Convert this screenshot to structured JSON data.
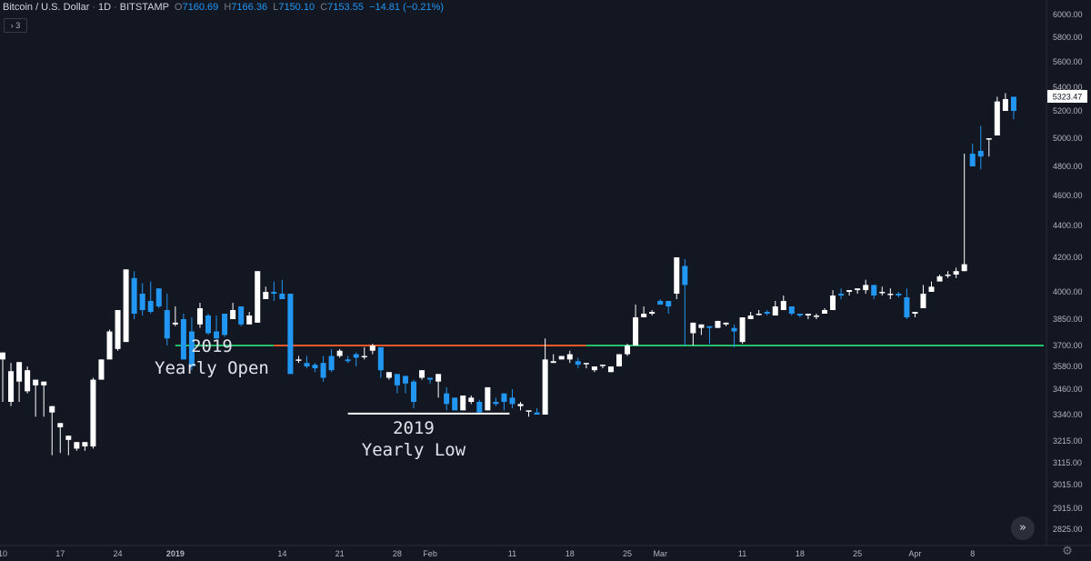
{
  "header": {
    "symbol": "Bitcoin / U.S. Dollar",
    "interval": "1D",
    "exchange": "BITSTAMP",
    "o_label": "O",
    "o_value": "7160.69",
    "h_label": "H",
    "h_value": "7166.36",
    "l_label": "L",
    "l_value": "7150.10",
    "c_label": "C",
    "c_value": "7153.55",
    "change": "−14.81 (−0.21%)"
  },
  "indicators_button": "› 3",
  "scroll_button_icon": "double-chevron-right-icon",
  "settings_icon": "gear-icon",
  "colors": {
    "up": "#ffffff",
    "down": "#2196f3",
    "background": "#131722",
    "resistance_line": "#f0592a",
    "support_line": "#26c06a",
    "low_line": "#ffffff"
  },
  "chart_data": {
    "type": "candlestick",
    "y_ticks": [
      "6000.00",
      "5800.00",
      "5600.00",
      "5400.00",
      "5200.00",
      "5000.00",
      "4800.00",
      "4600.00",
      "4400.00",
      "4200.00",
      "4000.00",
      "3850.00",
      "3700.00",
      "3580.00",
      "3460.00",
      "3340.00",
      "3215.00",
      "3115.00",
      "3015.00",
      "2915.00",
      "2825.00"
    ],
    "x_ticks": [
      {
        "label": "10",
        "index": 0
      },
      {
        "label": "17",
        "index": 7
      },
      {
        "label": "24",
        "index": 14
      },
      {
        "label": "2019",
        "index": 21,
        "bold": true
      },
      {
        "label": "14",
        "index": 34
      },
      {
        "label": "21",
        "index": 41
      },
      {
        "label": "28",
        "index": 48
      },
      {
        "label": "Feb",
        "index": 52
      },
      {
        "label": "11",
        "index": 62
      },
      {
        "label": "18",
        "index": 69
      },
      {
        "label": "25",
        "index": 76
      },
      {
        "label": "Mar",
        "index": 80
      },
      {
        "label": "11",
        "index": 90
      },
      {
        "label": "18",
        "index": 97
      },
      {
        "label": "25",
        "index": 104
      },
      {
        "label": "Apr",
        "index": 111
      },
      {
        "label": "8",
        "index": 118
      }
    ],
    "last_price": "5323.47",
    "levels": [
      {
        "name": "2019 yearly open",
        "price": 3700,
        "from_index": 21,
        "to_index": 120,
        "split_index": 71,
        "color_left": "#26c06a",
        "color_mid": "#f0592a"
      },
      {
        "name": "2019 yearly low",
        "price": 3345,
        "from_index": 42,
        "to_index": 61
      }
    ],
    "annotations": [
      {
        "lines": [
          "2019",
          "Yearly Open"
        ],
        "index": 24,
        "price": 3560
      },
      {
        "lines": [
          "2019",
          "Yearly Low"
        ],
        "index": 50,
        "price": 3250
      }
    ],
    "candles": [
      [
        3620,
        3660,
        3420,
        3400
      ],
      [
        3400,
        3555,
        3380,
        3600
      ],
      [
        3500,
        3605,
        3400,
        3520
      ],
      [
        3450,
        3560,
        3440,
        3580
      ],
      [
        3480,
        3510,
        3330,
        3450
      ],
      [
        3480,
        3500,
        3330,
        3340
      ],
      [
        3350,
        3380,
        3150,
        3280
      ],
      [
        3280,
        3300,
        3180,
        3160
      ],
      [
        3220,
        3240,
        3180,
        3150
      ],
      [
        3180,
        3210,
        3190,
        3170
      ],
      [
        3190,
        3210,
        3170,
        3180
      ],
      [
        3190,
        3510,
        3180,
        3520
      ],
      [
        3510,
        3620,
        3530,
        3520
      ],
      [
        3620,
        3780,
        3660,
        3790
      ],
      [
        3680,
        3900,
        3710,
        3670
      ],
      [
        3720,
        4130,
        3760,
        3990
      ],
      [
        4080,
        3880,
        4120,
        3850
      ],
      [
        3990,
        3900,
        4050,
        3870
      ],
      [
        3950,
        3890,
        4060,
        3880
      ],
      [
        4020,
        3920,
        3990,
        3910
      ],
      [
        3900,
        3740,
        3990,
        3700
      ],
      [
        3820,
        3830,
        3920,
        3810
      ],
      [
        3850,
        3620,
        3880,
        3640
      ],
      [
        3780,
        3580,
        3860,
        3560
      ],
      [
        3820,
        3910,
        3800,
        3940
      ],
      [
        3870,
        3770,
        3880,
        3760
      ],
      [
        3780,
        3740,
        3870,
        3740
      ],
      [
        3880,
        3760,
        3820,
        3750
      ],
      [
        3850,
        3900,
        3860,
        3940
      ],
      [
        3920,
        3820,
        3900,
        3810
      ],
      [
        3820,
        3870,
        3830,
        3890
      ],
      [
        3830,
        4120,
        3840,
        3860
      ],
      [
        3960,
        4000,
        4030,
        3970
      ],
      [
        4000,
        3990,
        4060,
        3950
      ],
      [
        3990,
        3960,
        4070,
        3980
      ],
      [
        3990,
        3540,
        3600,
        3550
      ],
      [
        3620,
        3620,
        3600,
        3640
      ],
      [
        3600,
        3580,
        3640,
        3570
      ],
      [
        3590,
        3570,
        3600,
        3550
      ],
      [
        3600,
        3520,
        3640,
        3500
      ],
      [
        3640,
        3560,
        3680,
        3550
      ],
      [
        3640,
        3670,
        3630,
        3680
      ],
      [
        3620,
        3610,
        3640,
        3600
      ],
      [
        3650,
        3630,
        3660,
        3580
      ],
      [
        3640,
        3640,
        3690,
        3620
      ],
      [
        3670,
        3700,
        3650,
        3710
      ],
      [
        3690,
        3560,
        3650,
        3520
      ],
      [
        3520,
        3550,
        3520,
        3510
      ],
      [
        3540,
        3480,
        3490,
        3440
      ],
      [
        3530,
        3490,
        3500,
        3440
      ],
      [
        3500,
        3400,
        3510,
        3370
      ],
      [
        3520,
        3560,
        3530,
        3510
      ],
      [
        3520,
        3510,
        3490,
        3500
      ],
      [
        3500,
        3540,
        3450,
        3420
      ],
      [
        3440,
        3390,
        3470,
        3360
      ],
      [
        3420,
        3360,
        3410,
        3380
      ],
      [
        3360,
        3430,
        3370,
        3420
      ],
      [
        3400,
        3420,
        3390,
        3430
      ],
      [
        3400,
        3350,
        3410,
        3360
      ],
      [
        3360,
        3470,
        3370,
        3400
      ],
      [
        3400,
        3390,
        3420,
        3380
      ],
      [
        3440,
        3400,
        3430,
        3360
      ],
      [
        3420,
        3390,
        3460,
        3370
      ],
      [
        3380,
        3390,
        3400,
        3360
      ],
      [
        3360,
        3360,
        3330,
        3330
      ],
      [
        3350,
        3340,
        3370,
        3340
      ],
      [
        3340,
        3620,
        3600,
        3740
      ],
      [
        3600,
        3610,
        3650,
        3600
      ],
      [
        3620,
        3640,
        3640,
        3620
      ],
      [
        3620,
        3650,
        3670,
        3600
      ],
      [
        3610,
        3590,
        3630,
        3570
      ],
      [
        3600,
        3600,
        3590,
        3570
      ],
      [
        3560,
        3580,
        3570,
        3550
      ],
      [
        3590,
        3590,
        3580,
        3570
      ],
      [
        3550,
        3580,
        3580,
        3560
      ],
      [
        3580,
        3650,
        3590,
        3620
      ],
      [
        3650,
        3700,
        3640,
        3710
      ],
      [
        3700,
        3860,
        3710,
        3930
      ],
      [
        3860,
        3880,
        3870,
        3920
      ],
      [
        3880,
        3890,
        3870,
        3900
      ],
      [
        3950,
        3930,
        3940,
        3960
      ],
      [
        3950,
        3920,
        3930,
        3880
      ],
      [
        3990,
        4200,
        3960,
        4160
      ],
      [
        4150,
        4040,
        4190,
        3700
      ],
      [
        3770,
        3830,
        3800,
        3700
      ],
      [
        3800,
        3820,
        3760,
        3800
      ],
      [
        3810,
        3800,
        3810,
        3710
      ],
      [
        3800,
        3840,
        3820,
        3830
      ],
      [
        3820,
        3830,
        3810,
        3820
      ],
      [
        3800,
        3780,
        3820,
        3690
      ],
      [
        3720,
        3860,
        3710,
        3720
      ],
      [
        3850,
        3870,
        3850,
        3890
      ],
      [
        3880,
        3880,
        3870,
        3900
      ],
      [
        3890,
        3880,
        3870,
        3900
      ],
      [
        3870,
        3920,
        3900,
        3950
      ],
      [
        3900,
        3950,
        3900,
        3980
      ],
      [
        3920,
        3880,
        3910,
        3870
      ],
      [
        3880,
        3870,
        3860,
        3880
      ],
      [
        3870,
        3880,
        3860,
        3850
      ],
      [
        3870,
        3870,
        3880,
        3850
      ],
      [
        3880,
        3900,
        3890,
        3910
      ],
      [
        3900,
        3980,
        3920,
        4010
      ],
      [
        3990,
        3980,
        4020,
        3960
      ],
      [
        4000,
        4010,
        3980,
        3990
      ],
      [
        4010,
        4020,
        3990,
        3990
      ],
      [
        4010,
        4040,
        3990,
        4070
      ],
      [
        4040,
        3980,
        4040,
        3960
      ],
      [
        4000,
        4000,
        4030,
        3980
      ],
      [
        3990,
        3990,
        4020,
        3960
      ],
      [
        3990,
        3980,
        4000,
        3970
      ],
      [
        3970,
        3860,
        4020,
        3850
      ],
      [
        3880,
        3890,
        3880,
        3860
      ],
      [
        3910,
        3990,
        3910,
        4040
      ],
      [
        4000,
        4030,
        4060,
        4020
      ],
      [
        4060,
        4090,
        4060,
        4100
      ],
      [
        4100,
        4100,
        4120,
        4080
      ],
      [
        4100,
        4120,
        4140,
        4080
      ],
      [
        4120,
        4160,
        4890,
        4150
      ],
      [
        4890,
        4800,
        4960,
        4820
      ],
      [
        4910,
        4870,
        5090,
        4780
      ],
      [
        4990,
        5000,
        5000,
        4870
      ],
      [
        5020,
        5280,
        5200,
        5320
      ],
      [
        5200,
        5300,
        5260,
        5350
      ],
      [
        5320,
        5200,
        5280,
        5140
      ]
    ]
  }
}
